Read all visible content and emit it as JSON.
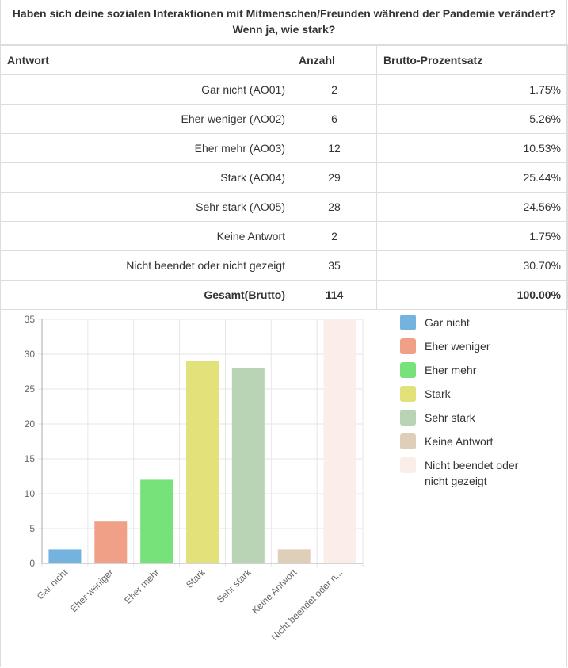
{
  "question": {
    "line1": "Haben sich deine sozialen Interaktionen mit Mitmenschen/Freunden während der Pandemie verändert?",
    "line2": "Wenn ja, wie stark?"
  },
  "table": {
    "headers": [
      "Antwort",
      "Anzahl",
      "Brutto-Prozentsatz"
    ],
    "rows": [
      {
        "answer": "Gar nicht (AO01)",
        "count": "2",
        "percent": "1.75%"
      },
      {
        "answer": "Eher weniger (AO02)",
        "count": "6",
        "percent": "5.26%"
      },
      {
        "answer": "Eher mehr (AO03)",
        "count": "12",
        "percent": "10.53%"
      },
      {
        "answer": "Stark (AO04)",
        "count": "29",
        "percent": "25.44%"
      },
      {
        "answer": "Sehr stark (AO05)",
        "count": "28",
        "percent": "24.56%"
      },
      {
        "answer": "Keine Antwort",
        "count": "2",
        "percent": "1.75%"
      },
      {
        "answer": "Nicht beendet oder nicht gezeigt",
        "count": "35",
        "percent": "30.70%"
      }
    ],
    "total": {
      "answer": "Gesamt(Brutto)",
      "count": "114",
      "percent": "100.00%"
    }
  },
  "chart_data": {
    "type": "bar",
    "categories": [
      "Gar nicht",
      "Eher weniger",
      "Eher mehr",
      "Stark",
      "Sehr stark",
      "Keine Antwort",
      "Nicht beendet oder nicht gezeigt"
    ],
    "tick_labels": [
      "Gar nicht",
      "Eher weniger",
      "Eher mehr",
      "Stark",
      "Sehr stark",
      "Keine Antwort",
      "Nicht beendet oder n..."
    ],
    "values": [
      2,
      6,
      12,
      29,
      28,
      2,
      35
    ],
    "colors": [
      "#74b3e0",
      "#f0a086",
      "#78e27a",
      "#e3e27a",
      "#b8d4b4",
      "#e0cfb8",
      "#fbede7"
    ],
    "ylim": [
      0,
      35
    ],
    "yticks": [
      0,
      5,
      10,
      15,
      20,
      25,
      30,
      35
    ],
    "grid": true,
    "legend": "right",
    "legend_labels": [
      "Gar nicht",
      "Eher weniger",
      "Eher mehr",
      "Stark",
      "Sehr stark",
      "Keine Antwort",
      "Nicht beendet oder nicht gezeigt"
    ]
  }
}
